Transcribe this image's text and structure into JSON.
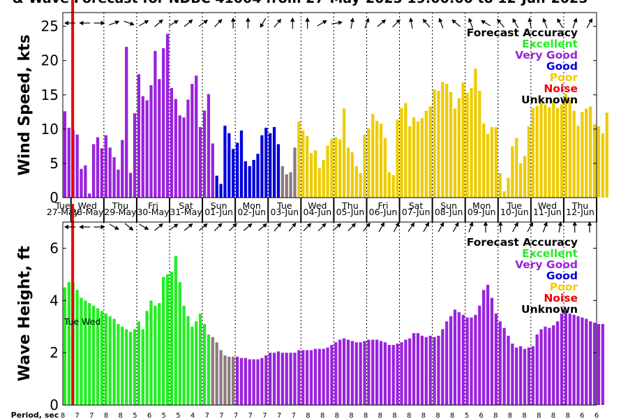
{
  "title": "& Wave Forecast for NDBC 41004 from 27-May-2025 19:00:00 to 12-Jun-2025",
  "colors": {
    "excellent": "#22ee22",
    "very_good": "#9922dd",
    "good": "#0000dd",
    "poor": "#eecc00",
    "noise": "#ee0000",
    "unknown": "#000000",
    "transition": "#8a7a80"
  },
  "chart_data": [
    {
      "type": "bar",
      "panel": "wind",
      "ylabel": "Wind Speed, kts",
      "ylim": [
        0,
        27
      ],
      "yticks": [
        0,
        5,
        10,
        15,
        20,
        25
      ],
      "day_labels": [
        {
          "day": "Tue",
          "date": "27-May"
        },
        {
          "day": "Wed",
          "date": "28-May"
        },
        {
          "day": "Thu",
          "date": "29-May"
        },
        {
          "day": "Fri",
          "date": "30-May"
        },
        {
          "day": "Sat",
          "date": "31-May"
        },
        {
          "day": "Sun",
          "date": "01-Jun"
        },
        {
          "day": "Mon",
          "date": "02-Jun"
        },
        {
          "day": "Tue",
          "date": "03-Jun"
        },
        {
          "day": "Wed",
          "date": "04-Jun"
        },
        {
          "day": "Thu",
          "date": "05-Jun"
        },
        {
          "day": "Fri",
          "date": "06-Jun"
        },
        {
          "day": "Sat",
          "date": "07-Jun"
        },
        {
          "day": "Sun",
          "date": "08-Jun"
        },
        {
          "day": "Mon",
          "date": "09-Jun"
        },
        {
          "day": "Tue",
          "date": "10-Jun"
        },
        {
          "day": "Wed",
          "date": "11-Jun"
        },
        {
          "day": "Thu",
          "date": "12-Jun"
        }
      ],
      "legend": {
        "title": "Forecast Accuracy",
        "entries": [
          {
            "label": "Excellent",
            "color": "#22ee22"
          },
          {
            "label": "Very Good",
            "color": "#9922dd"
          },
          {
            "label": "Good",
            "color": "#0000dd"
          },
          {
            "label": "Poor",
            "color": "#eecc00"
          },
          {
            "label": "Noise",
            "color": "#ee0000"
          },
          {
            "label": "Unknown",
            "color": "#000000"
          }
        ]
      },
      "series": [
        {
          "values": [
            12.6,
            10.2,
            9.9,
            9.2,
            4.2,
            4.7,
            0.6,
            7.8,
            8.8,
            7.2,
            9.1,
            7.3,
            5.9,
            4.1,
            8.4,
            22.0,
            3.6,
            12.3,
            18.0,
            14.8,
            14.2,
            16.4,
            21.4,
            17.3,
            21.8,
            23.9,
            16.0,
            14.4,
            12.0,
            11.7,
            14.3,
            16.6,
            17.8,
            10.3,
            12.7,
            15.1,
            7.9,
            3.2,
            2.0,
            10.5,
            9.4,
            7.1,
            8.0,
            9.8,
            5.3,
            4.6,
            5.5,
            6.4,
            9.1,
            10.2,
            9.4,
            10.3,
            7.8,
            4.6,
            3.4,
            3.7,
            7.3,
            11.1,
            9.8,
            9.0,
            6.5,
            6.9,
            4.3,
            5.5,
            7.6,
            8.6,
            8.8,
            8.5,
            13.0,
            7.3,
            6.6,
            4.6,
            3.6,
            9.2,
            10.1,
            12.2,
            11.2,
            10.8,
            8.7,
            3.7,
            3.3,
            11.4,
            13.1,
            13.8,
            10.4,
            11.7,
            11.1,
            11.6,
            12.7,
            13.3,
            15.8,
            15.6,
            16.9,
            16.6,
            15.4,
            13.0,
            14.5,
            16.8,
            15.3,
            16.0,
            18.8,
            15.6,
            10.8,
            9.3,
            10.3,
            10.3,
            3.6,
            0.9,
            2.9,
            7.5,
            8.7,
            5.0,
            6.1,
            10.4,
            13.1,
            13.4,
            13.9,
            13.6,
            13.2,
            14.1,
            13.1,
            13.6,
            15.1,
            14.3,
            12.7,
            10.5,
            12.5,
            13.0,
            13.3,
            10.7,
            10.4,
            9.4,
            12.4
          ]
        }
      ]
    },
    {
      "type": "bar",
      "panel": "wave",
      "ylabel": "Wave Height, ft",
      "ylim": [
        0,
        7
      ],
      "yticks": [
        0,
        2,
        4,
        6
      ],
      "day_labels": [
        {
          "day": "Tue",
          "date": ""
        },
        {
          "day": "Wed",
          "date": ""
        }
      ],
      "period_label": "Period, sec",
      "legend": {
        "title": "Forecast Accuracy",
        "entries": [
          {
            "label": "Excellent",
            "color": "#22ee22"
          },
          {
            "label": "Very Good",
            "color": "#9922dd"
          },
          {
            "label": "Good",
            "color": "#0000dd"
          },
          {
            "label": "Poor",
            "color": "#eecc00"
          },
          {
            "label": "Noise",
            "color": "#ee0000"
          },
          {
            "label": "Unknown",
            "color": "#000000"
          }
        ]
      },
      "period_values": [
        8,
        7,
        7,
        8,
        8,
        5,
        6,
        5,
        5,
        4,
        7,
        7,
        7,
        7,
        7,
        7,
        7,
        8,
        8,
        8,
        8,
        8,
        8,
        8,
        8,
        8,
        8,
        8,
        5,
        6,
        8,
        8,
        8,
        8,
        8,
        8,
        6,
        6
      ],
      "series": [
        {
          "values": [
            4.5,
            4.7,
            4.7,
            4.4,
            4.1,
            4.0,
            3.9,
            3.8,
            3.7,
            3.6,
            3.5,
            3.4,
            3.3,
            3.1,
            3.0,
            2.9,
            2.8,
            2.9,
            3.2,
            2.9,
            3.6,
            4.0,
            3.8,
            3.9,
            4.9,
            5.0,
            5.1,
            5.7,
            4.7,
            3.8,
            3.4,
            3.0,
            3.2,
            3.5,
            3.1,
            2.7,
            2.6,
            2.4,
            2.1,
            1.9,
            1.85,
            1.85,
            1.85,
            1.8,
            1.8,
            1.75,
            1.75,
            1.75,
            1.8,
            1.9,
            2.0,
            2.0,
            2.05,
            2.0,
            2.0,
            2.0,
            2.0,
            2.1,
            2.1,
            2.1,
            2.1,
            2.15,
            2.15,
            2.15,
            2.2,
            2.3,
            2.4,
            2.5,
            2.55,
            2.5,
            2.45,
            2.4,
            2.4,
            2.45,
            2.5,
            2.5,
            2.5,
            2.45,
            2.4,
            2.3,
            2.3,
            2.35,
            2.4,
            2.5,
            2.55,
            2.75,
            2.75,
            2.65,
            2.6,
            2.65,
            2.6,
            2.65,
            2.9,
            3.2,
            3.4,
            3.65,
            3.55,
            3.45,
            3.35,
            3.35,
            3.45,
            3.8,
            4.4,
            4.6,
            4.1,
            3.5,
            3.2,
            2.95,
            2.65,
            2.35,
            2.2,
            2.25,
            2.15,
            2.2,
            2.25,
            2.7,
            2.9,
            3.0,
            2.95,
            3.05,
            3.2,
            3.5,
            3.6,
            3.5,
            3.45,
            3.4,
            3.35,
            3.3,
            3.2,
            3.15,
            3.1,
            3.1
          ]
        }
      ]
    }
  ]
}
